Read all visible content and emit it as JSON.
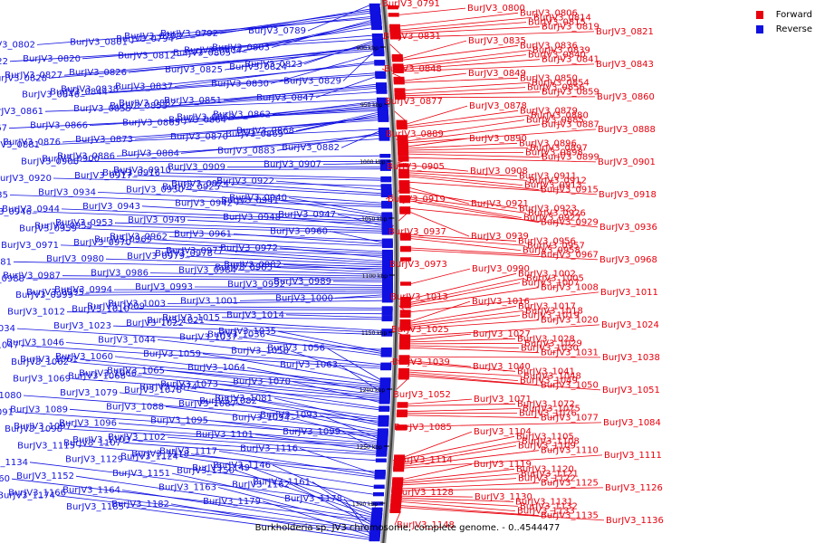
{
  "caption": "Burkholderia sp. JV3 chromosome, complete genome. - 0..4544477",
  "legend": [
    {
      "label": "Forward",
      "color": "#e8000d"
    },
    {
      "label": "Reverse",
      "color": "#1010e0"
    }
  ],
  "scale_labels": [
    "900 kbp",
    "950 kbp",
    "1000 kbp",
    "1050 kbp",
    "1100 kbp",
    "1150 kbp",
    "1200 kbp",
    "1250 kbp",
    "1300 kbp"
  ],
  "genes": [
    {
      "id": "BurJV3_0789",
      "s": "R"
    },
    {
      "id": "BurJV3_0791",
      "s": "F"
    },
    {
      "id": "BurJV3_0792",
      "s": "R"
    },
    {
      "id": "BurJV3_0793",
      "s": "R"
    },
    {
      "id": "BurJV3_0794",
      "s": "R"
    },
    {
      "id": "BurJV3_0800",
      "s": "F"
    },
    {
      "id": "BurJV3_0801",
      "s": "R"
    },
    {
      "id": "BurJV3_0802",
      "s": "R"
    },
    {
      "id": "BurJV3_0803",
      "s": "R"
    },
    {
      "id": "BurJV3_0804",
      "s": "R"
    },
    {
      "id": "BurJV3_0805",
      "s": "R"
    },
    {
      "id": "BurJV3_0806",
      "s": "F"
    },
    {
      "id": "BurJV3_0812",
      "s": "R"
    },
    {
      "id": "BurJV3_0814",
      "s": "F"
    },
    {
      "id": "BurJV3_0815",
      "s": "F"
    },
    {
      "id": "BurJV3_0819",
      "s": "F"
    },
    {
      "id": "BurJV3_0820",
      "s": "R"
    },
    {
      "id": "BurJV3_0821",
      "s": "F"
    },
    {
      "id": "BurJV3_0822",
      "s": "R"
    },
    {
      "id": "BurJV3_0823",
      "s": "R"
    },
    {
      "id": "BurJV3_0824",
      "s": "R"
    },
    {
      "id": "BurJV3_0825",
      "s": "R"
    },
    {
      "id": "BurJV3_0826",
      "s": "R"
    },
    {
      "id": "BurJV3_0827",
      "s": "R"
    },
    {
      "id": "BurJV3_0828",
      "s": "R"
    },
    {
      "id": "BurJV3_0829",
      "s": "R"
    },
    {
      "id": "BurJV3_0830",
      "s": "R"
    },
    {
      "id": "BurJV3_0831",
      "s": "F"
    },
    {
      "id": "BurJV3_0835",
      "s": "F"
    },
    {
      "id": "BurJV3_0836",
      "s": "F"
    },
    {
      "id": "BurJV3_0837",
      "s": "R"
    },
    {
      "id": "BurJV3_0838",
      "s": "R"
    },
    {
      "id": "BurJV3_0839",
      "s": "F"
    },
    {
      "id": "BurJV3_0840",
      "s": "F"
    },
    {
      "id": "BurJV3_0841",
      "s": "F"
    },
    {
      "id": "BurJV3_0843",
      "s": "F"
    },
    {
      "id": "BurJV3_0844",
      "s": "R"
    },
    {
      "id": "BurJV3_0846",
      "s": "R"
    },
    {
      "id": "BurJV3_0847",
      "s": "R"
    },
    {
      "id": "BurJV3_0848",
      "s": "F"
    },
    {
      "id": "BurJV3_0849",
      "s": "F"
    },
    {
      "id": "BurJV3_0850",
      "s": "F"
    },
    {
      "id": "BurJV3_0851",
      "s": "R"
    },
    {
      "id": "BurJV3_0852",
      "s": "R"
    },
    {
      "id": "BurJV3_0853",
      "s": "R"
    },
    {
      "id": "BurJV3_0854",
      "s": "F"
    },
    {
      "id": "BurJV3_0855",
      "s": "R"
    },
    {
      "id": "BurJV3_0856",
      "s": "F"
    },
    {
      "id": "BurJV3_0859",
      "s": "F"
    },
    {
      "id": "BurJV3_0860",
      "s": "F"
    },
    {
      "id": "BurJV3_0861",
      "s": "R"
    },
    {
      "id": "BurJV3_0862",
      "s": "R"
    },
    {
      "id": "BurJV3_0863",
      "s": "R"
    },
    {
      "id": "BurJV3_0864",
      "s": "R"
    },
    {
      "id": "BurJV3_0865",
      "s": "R"
    },
    {
      "id": "BurJV3_0866",
      "s": "R"
    },
    {
      "id": "BurJV3_0867",
      "s": "R"
    },
    {
      "id": "BurJV3_0868",
      "s": "R"
    },
    {
      "id": "BurJV3_0869",
      "s": "R"
    },
    {
      "id": "BurJV3_0870",
      "s": "R"
    },
    {
      "id": "BurJV3_0873",
      "s": "R"
    },
    {
      "id": "BurJV3_0876",
      "s": "R"
    },
    {
      "id": "BurJV3_0877",
      "s": "F"
    },
    {
      "id": "BurJV3_0878",
      "s": "F"
    },
    {
      "id": "BurJV3_0879",
      "s": "F"
    },
    {
      "id": "BurJV3_0880",
      "s": "F"
    },
    {
      "id": "BurJV3_0881",
      "s": "R"
    },
    {
      "id": "BurJV3_0882",
      "s": "R"
    },
    {
      "id": "BurJV3_0883",
      "s": "R"
    },
    {
      "id": "BurJV3_0884",
      "s": "R"
    },
    {
      "id": "BurJV3_0885",
      "s": "F"
    },
    {
      "id": "BurJV3_0886",
      "s": "R"
    },
    {
      "id": "BurJV3_0887",
      "s": "F"
    },
    {
      "id": "BurJV3_0888",
      "s": "F"
    },
    {
      "id": "BurJV3_0889",
      "s": "F"
    },
    {
      "id": "BurJV3_0890",
      "s": "F"
    },
    {
      "id": "BurJV3_0896",
      "s": "F"
    },
    {
      "id": "BurJV3_0897",
      "s": "F"
    },
    {
      "id": "BurJV3_0898",
      "s": "F"
    },
    {
      "id": "BurJV3_0899",
      "s": "F"
    },
    {
      "id": "BurJV3_0900",
      "s": "R"
    },
    {
      "id": "BurJV3_0901",
      "s": "F"
    },
    {
      "id": "BurJV3_0905",
      "s": "F"
    },
    {
      "id": "BurJV3_0906",
      "s": "R"
    },
    {
      "id": "BurJV3_0907",
      "s": "R"
    },
    {
      "id": "BurJV3_0908",
      "s": "F"
    },
    {
      "id": "BurJV3_0909",
      "s": "R"
    },
    {
      "id": "BurJV3_0910",
      "s": "R"
    },
    {
      "id": "BurJV3_0911",
      "s": "F"
    },
    {
      "id": "BurJV3_0912",
      "s": "F"
    },
    {
      "id": "BurJV3_0913",
      "s": "F"
    },
    {
      "id": "BurJV3_0915",
      "s": "F"
    },
    {
      "id": "BurJV3_0916",
      "s": "R"
    },
    {
      "id": "BurJV3_0917",
      "s": "R"
    },
    {
      "id": "BurJV3_0918",
      "s": "F"
    },
    {
      "id": "BurJV3_0919",
      "s": "F"
    },
    {
      "id": "BurJV3_0920",
      "s": "R"
    },
    {
      "id": "BurJV3_0921",
      "s": "F"
    },
    {
      "id": "BurJV3_0922",
      "s": "R"
    },
    {
      "id": "BurJV3_0923",
      "s": "F"
    },
    {
      "id": "BurJV3_0924",
      "s": "R"
    },
    {
      "id": "BurJV3_0925",
      "s": "R"
    },
    {
      "id": "BurJV3_0926",
      "s": "F"
    },
    {
      "id": "BurJV3_0927",
      "s": "F"
    },
    {
      "id": "BurJV3_0929",
      "s": "F"
    },
    {
      "id": "BurJV3_0930",
      "s": "R"
    },
    {
      "id": "BurJV3_0934",
      "s": "R"
    },
    {
      "id": "BurJV3_0935",
      "s": "R"
    },
    {
      "id": "BurJV3_0936",
      "s": "F"
    },
    {
      "id": "BurJV3_0937",
      "s": "F"
    },
    {
      "id": "BurJV3_0939",
      "s": "F"
    },
    {
      "id": "BurJV3_0940",
      "s": "R"
    },
    {
      "id": "BurJV3_0941",
      "s": "R"
    },
    {
      "id": "BurJV3_0942",
      "s": "R"
    },
    {
      "id": "BurJV3_0943",
      "s": "R"
    },
    {
      "id": "BurJV3_0944",
      "s": "R"
    },
    {
      "id": "BurJV3_0946",
      "s": "R"
    },
    {
      "id": "BurJV3_0947",
      "s": "R"
    },
    {
      "id": "BurJV3_0948",
      "s": "R"
    },
    {
      "id": "BurJV3_0949",
      "s": "R"
    },
    {
      "id": "BurJV3_0953",
      "s": "R"
    },
    {
      "id": "BurJV3_0955",
      "s": "R"
    },
    {
      "id": "BurJV3_0956",
      "s": "F"
    },
    {
      "id": "BurJV3_0957",
      "s": "F"
    },
    {
      "id": "BurJV3_0958",
      "s": "F"
    },
    {
      "id": "BurJV3_0959",
      "s": "R"
    },
    {
      "id": "BurJV3_0960",
      "s": "R"
    },
    {
      "id": "BurJV3_0961",
      "s": "R"
    },
    {
      "id": "BurJV3_0962",
      "s": "R"
    },
    {
      "id": "BurJV3_0967",
      "s": "F"
    },
    {
      "id": "BurJV3_0968",
      "s": "F"
    },
    {
      "id": "BurJV3_0969",
      "s": "R"
    },
    {
      "id": "BurJV3_0970",
      "s": "R"
    },
    {
      "id": "BurJV3_0971",
      "s": "R"
    },
    {
      "id": "BurJV3_0972",
      "s": "R"
    },
    {
      "id": "BurJV3_0973",
      "s": "F"
    },
    {
      "id": "BurJV3_0977",
      "s": "R"
    },
    {
      "id": "BurJV3_0978",
      "s": "R"
    },
    {
      "id": "BurJV3_0979",
      "s": "R"
    },
    {
      "id": "BurJV3_0980",
      "s": "R"
    },
    {
      "id": "BurJV3_0981",
      "s": "R"
    },
    {
      "id": "BurJV3_0982",
      "s": "R"
    },
    {
      "id": "BurJV3_0983",
      "s": "R"
    },
    {
      "id": "BurJV3_0984",
      "s": "R"
    },
    {
      "id": "BurJV3_0986",
      "s": "R"
    },
    {
      "id": "BurJV3_0987",
      "s": "R"
    },
    {
      "id": "BurJV3_0988",
      "s": "R"
    },
    {
      "id": "BurJV3_0989",
      "s": "R"
    },
    {
      "id": "BurJV3_0990",
      "s": "F"
    },
    {
      "id": "BurJV3_0992",
      "s": "R"
    },
    {
      "id": "BurJV3_0993",
      "s": "R"
    },
    {
      "id": "BurJV3_0994",
      "s": "R"
    },
    {
      "id": "BurJV3_0995",
      "s": "R"
    },
    {
      "id": "BurJV3_0999",
      "s": "R"
    },
    {
      "id": "BurJV3_1000",
      "s": "R"
    },
    {
      "id": "BurJV3_1001",
      "s": "R"
    },
    {
      "id": "BurJV3_1002",
      "s": "F"
    },
    {
      "id": "BurJV3_1003",
      "s": "R"
    },
    {
      "id": "BurJV3_1005",
      "s": "F"
    },
    {
      "id": "BurJV3_1007",
      "s": "F"
    },
    {
      "id": "BurJV3_1008",
      "s": "F"
    },
    {
      "id": "BurJV3_1009",
      "s": "R"
    },
    {
      "id": "BurJV3_1010",
      "s": "R"
    },
    {
      "id": "BurJV3_1011",
      "s": "F"
    },
    {
      "id": "BurJV3_1012",
      "s": "R"
    },
    {
      "id": "BurJV3_1013",
      "s": "F"
    },
    {
      "id": "BurJV3_1014",
      "s": "R"
    },
    {
      "id": "BurJV3_1015",
      "s": "R"
    },
    {
      "id": "BurJV3_1016",
      "s": "F"
    },
    {
      "id": "BurJV3_1017",
      "s": "F"
    },
    {
      "id": "BurJV3_1018",
      "s": "F"
    },
    {
      "id": "BurJV3_1019",
      "s": "F"
    },
    {
      "id": "BurJV3_1020",
      "s": "F"
    },
    {
      "id": "BurJV3_1021",
      "s": "R"
    },
    {
      "id": "BurJV3_1022",
      "s": "R"
    },
    {
      "id": "BurJV3_1023",
      "s": "R"
    },
    {
      "id": "BurJV3_1024",
      "s": "F"
    },
    {
      "id": "BurJV3_1025",
      "s": "F"
    },
    {
      "id": "BurJV3_1027",
      "s": "F"
    },
    {
      "id": "BurJV3_1028",
      "s": "F"
    },
    {
      "id": "BurJV3_1029",
      "s": "F"
    },
    {
      "id": "BurJV3_1030",
      "s": "F"
    },
    {
      "id": "BurJV3_1031",
      "s": "F"
    },
    {
      "id": "BurJV3_1034",
      "s": "R"
    },
    {
      "id": "BurJV3_1035",
      "s": "R"
    },
    {
      "id": "BurJV3_1036",
      "s": "R"
    },
    {
      "id": "BurJV3_1037",
      "s": "R"
    },
    {
      "id": "BurJV3_1038",
      "s": "F"
    },
    {
      "id": "BurJV3_1039",
      "s": "F"
    },
    {
      "id": "BurJV3_1040",
      "s": "F"
    },
    {
      "id": "BurJV3_1041",
      "s": "F"
    },
    {
      "id": "BurJV3_1044",
      "s": "R"
    },
    {
      "id": "BurJV3_1046",
      "s": "R"
    },
    {
      "id": "BurJV3_1047",
      "s": "R"
    },
    {
      "id": "BurJV3_1048",
      "s": "F"
    },
    {
      "id": "BurJV3_1049",
      "s": "F"
    },
    {
      "id": "BurJV3_1050",
      "s": "F"
    },
    {
      "id": "BurJV3_1051",
      "s": "F"
    },
    {
      "id": "BurJV3_1052",
      "s": "F"
    },
    {
      "id": "BurJV3_1056",
      "s": "R"
    },
    {
      "id": "BurJV3_1058",
      "s": "R"
    },
    {
      "id": "BurJV3_1059",
      "s": "R"
    },
    {
      "id": "BurJV3_1060",
      "s": "R"
    },
    {
      "id": "BurJV3_1061",
      "s": "R"
    },
    {
      "id": "BurJV3_1062",
      "s": "R"
    },
    {
      "id": "BurJV3_1063",
      "s": "R"
    },
    {
      "id": "BurJV3_1064",
      "s": "R"
    },
    {
      "id": "BurJV3_1065",
      "s": "R"
    },
    {
      "id": "BurJV3_1066",
      "s": "R"
    },
    {
      "id": "BurJV3_1068",
      "s": "R"
    },
    {
      "id": "BurJV3_1069",
      "s": "R"
    },
    {
      "id": "BurJV3_1070",
      "s": "R"
    },
    {
      "id": "BurJV3_1071",
      "s": "F"
    },
    {
      "id": "BurJV3_1072",
      "s": "F"
    },
    {
      "id": "BurJV3_1073",
      "s": "R"
    },
    {
      "id": "BurJV3_1074",
      "s": "R"
    },
    {
      "id": "BurJV3_1075",
      "s": "F"
    },
    {
      "id": "BurJV3_1076",
      "s": "F"
    },
    {
      "id": "BurJV3_1077",
      "s": "F"
    },
    {
      "id": "BurJV3_1078",
      "s": "R"
    },
    {
      "id": "BurJV3_1079",
      "s": "R"
    },
    {
      "id": "BurJV3_1080",
      "s": "R"
    },
    {
      "id": "BurJV3_1081",
      "s": "R"
    },
    {
      "id": "BurJV3_1082",
      "s": "R"
    },
    {
      "id": "BurJV3_1084",
      "s": "F"
    },
    {
      "id": "BurJV3_1085",
      "s": "F"
    },
    {
      "id": "BurJV3_1087",
      "s": "R"
    },
    {
      "id": "BurJV3_1088",
      "s": "R"
    },
    {
      "id": "BurJV3_1089",
      "s": "R"
    },
    {
      "id": "BurJV3_1091",
      "s": "R"
    },
    {
      "id": "BurJV3_1093",
      "s": "R"
    },
    {
      "id": "BurJV3_1094",
      "s": "R"
    },
    {
      "id": "BurJV3_1095",
      "s": "R"
    },
    {
      "id": "BurJV3_1096",
      "s": "R"
    },
    {
      "id": "BurJV3_1097",
      "s": "R"
    },
    {
      "id": "BurJV3_1098",
      "s": "R"
    },
    {
      "id": "BurJV3_1099",
      "s": "R"
    },
    {
      "id": "BurJV3_1101",
      "s": "R"
    },
    {
      "id": "BurJV3_1102",
      "s": "R"
    },
    {
      "id": "BurJV3_1103",
      "s": "R"
    },
    {
      "id": "BurJV3_1104",
      "s": "F"
    },
    {
      "id": "BurJV3_1105",
      "s": "F"
    },
    {
      "id": "BurJV3_1107",
      "s": "R"
    },
    {
      "id": "BurJV3_1108",
      "s": "F"
    },
    {
      "id": "BurJV3_1109",
      "s": "F"
    },
    {
      "id": "BurJV3_1110",
      "s": "F"
    },
    {
      "id": "BurJV3_1111",
      "s": "F"
    },
    {
      "id": "BurJV3_1114",
      "s": "F"
    },
    {
      "id": "BurJV3_1115",
      "s": "R"
    },
    {
      "id": "BurJV3_1116",
      "s": "R"
    },
    {
      "id": "BurJV3_1117",
      "s": "R"
    },
    {
      "id": "BurJV3_1118",
      "s": "R"
    },
    {
      "id": "BurJV3_1119",
      "s": "F"
    },
    {
      "id": "BurJV3_1120",
      "s": "F"
    },
    {
      "id": "BurJV3_1121",
      "s": "F"
    },
    {
      "id": "BurJV3_1122",
      "s": "F"
    },
    {
      "id": "BurJV3_1124",
      "s": "R"
    },
    {
      "id": "BurJV3_1125",
      "s": "F"
    },
    {
      "id": "BurJV3_1126",
      "s": "F"
    },
    {
      "id": "BurJV3_1128",
      "s": "F"
    },
    {
      "id": "BurJV3_1129",
      "s": "R"
    },
    {
      "id": "BurJV3_1130",
      "s": "F"
    },
    {
      "id": "BurJV3_1131",
      "s": "F"
    },
    {
      "id": "BurJV3_1132",
      "s": "F"
    },
    {
      "id": "BurJV3_1133",
      "s": "F"
    },
    {
      "id": "BurJV3_1134",
      "s": "R"
    },
    {
      "id": "BurJV3_1135",
      "s": "F"
    },
    {
      "id": "BurJV3_1136",
      "s": "F"
    },
    {
      "id": "BurJV3_1146",
      "s": "R"
    },
    {
      "id": "BurJV3_1148",
      "s": "F"
    },
    {
      "id": "BurJV3_1149",
      "s": "R"
    },
    {
      "id": "BurJV3_1150",
      "s": "R"
    },
    {
      "id": "BurJV3_1151",
      "s": "R"
    },
    {
      "id": "BurJV3_1152",
      "s": "R"
    },
    {
      "id": "BurJV3_1160",
      "s": "R"
    },
    {
      "id": "BurJV3_1161",
      "s": "R"
    },
    {
      "id": "BurJV3_1162",
      "s": "R"
    },
    {
      "id": "BurJV3_1163",
      "s": "R"
    },
    {
      "id": "BurJV3_1164",
      "s": "R"
    },
    {
      "id": "BurJV3_1166",
      "s": "R"
    },
    {
      "id": "BurJV3_1174",
      "s": "R"
    },
    {
      "id": "BurJV3_1178",
      "s": "R"
    },
    {
      "id": "BurJV3_1179",
      "s": "R"
    },
    {
      "id": "BurJV3_1182",
      "s": "R"
    },
    {
      "id": "BurJV3_1185",
      "s": "R"
    }
  ]
}
